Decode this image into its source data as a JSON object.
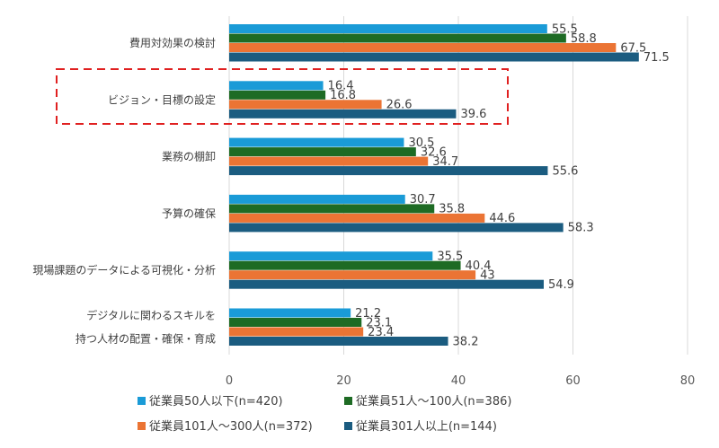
{
  "chart_data": {
    "type": "bar",
    "orientation": "horizontal",
    "categories": [
      [
        "費用対効果の検討"
      ],
      [
        "ビジョン・目標の設定"
      ],
      [
        "業務の棚卸"
      ],
      [
        "予算の確保"
      ],
      [
        "現場課題のデータによる可視化・分析"
      ],
      [
        "デジタルに関わるスキルを",
        "持つ人材の配置・確保・育成"
      ]
    ],
    "series": [
      {
        "name": "従業員50人以下(n=420)",
        "color": "#1A9BD7",
        "values": [
          55.5,
          16.4,
          30.5,
          30.7,
          35.5,
          21.2
        ]
      },
      {
        "name": "従業員51人～100人(n=386)",
        "color": "#1E6B24",
        "values": [
          58.8,
          16.8,
          32.6,
          35.8,
          40.4,
          23.1
        ]
      },
      {
        "name": "従業員101人～300人(n=372)",
        "color": "#EB7434",
        "values": [
          67.5,
          26.6,
          34.7,
          44.6,
          43,
          23.4
        ]
      },
      {
        "name": "従業員301人以上(n=144)",
        "color": "#1B5C80",
        "values": [
          71.5,
          39.6,
          55.6,
          58.3,
          54.9,
          38.2
        ]
      }
    ],
    "xlim": [
      0,
      80
    ],
    "xticks": [
      "0",
      "20",
      "40",
      "60",
      "80"
    ],
    "grid": true,
    "legend_position": "bottom",
    "highlight_color": "#E02020"
  }
}
